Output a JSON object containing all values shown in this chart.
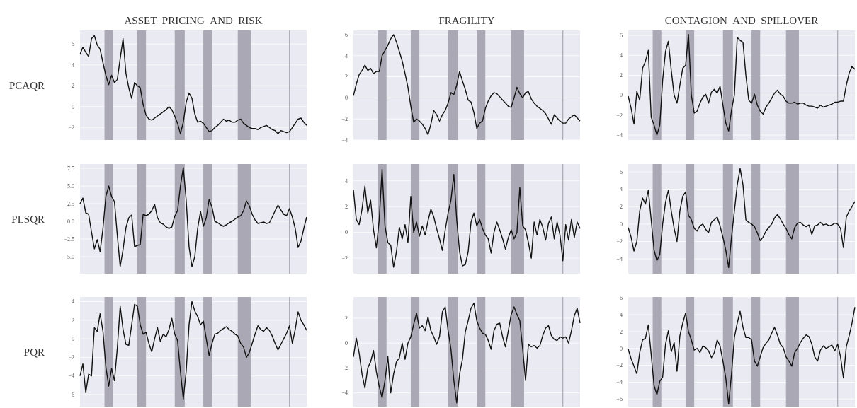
{
  "chart_data": [
    {
      "type": "line",
      "title": "ASSET_PRICING_AND_RISK",
      "ylabel": "PCAQR",
      "tick_labels": "y",
      "grid": "y",
      "ylim": [
        -3.2,
        7.3
      ],
      "yticks": [
        -2,
        0,
        2,
        4,
        6
      ],
      "categories": [
        null,
        null,
        null,
        null,
        null,
        null,
        null,
        null,
        null,
        null,
        null,
        null,
        null,
        null,
        null,
        null,
        null,
        null,
        null,
        null,
        null,
        null,
        null,
        null,
        null,
        null,
        null,
        null,
        null,
        null,
        null,
        null,
        null,
        null,
        null,
        null,
        null,
        null,
        null,
        null,
        null,
        null,
        null,
        null,
        null,
        null,
        null,
        null,
        null,
        null,
        null,
        null,
        null,
        null,
        null,
        null,
        null,
        null,
        null,
        null,
        null,
        null,
        null,
        null,
        null,
        null,
        null,
        null,
        null,
        null,
        null,
        null,
        null,
        null,
        null,
        null,
        null,
        null,
        null,
        null
      ],
      "series": [
        {
          "color": "#111111",
          "values": [
            5.0,
            5.7,
            5.2,
            4.8,
            6.5,
            6.8,
            5.9,
            5.5,
            4.2,
            3.0,
            2.1,
            3.0,
            2.3,
            2.6,
            4.6,
            6.5,
            3.2,
            1.8,
            0.8,
            2.3,
            2.0,
            1.8,
            0.2,
            -0.8,
            -1.2,
            -1.3,
            -1.1,
            -0.9,
            -0.7,
            -0.5,
            -0.3,
            0.0,
            -0.3,
            -0.9,
            -1.6,
            -2.6,
            -1.5,
            0.4,
            1.3,
            0.8,
            -0.7,
            -1.5,
            -1.4,
            -1.6,
            -2.0,
            -2.4,
            -2.3,
            -2.0,
            -1.8,
            -1.5,
            -1.2,
            -1.4,
            -1.3,
            -1.5,
            -1.5,
            -1.3,
            -1.2,
            -1.6,
            -1.8,
            -2.0,
            -2.1,
            -2.1,
            -2.2,
            -2.0,
            -1.9,
            -1.8,
            -2.0,
            -2.2,
            -2.3,
            -2.6,
            -2.3,
            -2.4,
            -2.5,
            -2.4,
            -2.0,
            -1.6,
            -1.2,
            -1.1,
            -1.5,
            -1.8
          ]
        }
      ]
    },
    {
      "type": "line",
      "title": "FRAGILITY",
      "tick_labels": "y",
      "grid": "y",
      "ylim": [
        -4,
        6.4
      ],
      "yticks": [
        -4,
        -2,
        0,
        2,
        4,
        6
      ],
      "categories": [
        null,
        null,
        null,
        null,
        null,
        null,
        null,
        null,
        null,
        null,
        null,
        null,
        null,
        null,
        null,
        null,
        null,
        null,
        null,
        null,
        null,
        null,
        null,
        null,
        null,
        null,
        null,
        null,
        null,
        null,
        null,
        null,
        null,
        null,
        null,
        null,
        null,
        null,
        null,
        null,
        null,
        null,
        null,
        null,
        null,
        null,
        null,
        null,
        null,
        null,
        null,
        null,
        null,
        null,
        null,
        null,
        null,
        null,
        null,
        null,
        null,
        null,
        null,
        null,
        null,
        null,
        null,
        null,
        null,
        null,
        null,
        null,
        null,
        null,
        null,
        null,
        null,
        null,
        null,
        null
      ],
      "series": [
        {
          "color": "#111111",
          "values": [
            0.2,
            1.3,
            2.2,
            2.6,
            3.1,
            2.6,
            2.8,
            2.3,
            2.5,
            2.5,
            4.0,
            4.5,
            5.0,
            5.6,
            6.0,
            5.3,
            4.4,
            3.5,
            2.3,
            1.0,
            -0.8,
            -2.3,
            -2.0,
            -2.2,
            -2.5,
            -2.9,
            -3.5,
            -2.5,
            -1.2,
            -1.6,
            -2.2,
            -1.6,
            -1.2,
            -0.5,
            0.5,
            0.3,
            1.2,
            2.5,
            1.6,
            0.8,
            -0.2,
            -0.4,
            -1.4,
            -2.9,
            -2.4,
            -2.2,
            -1.0,
            -0.3,
            0.2,
            0.5,
            0.4,
            0.1,
            -0.2,
            -0.5,
            -0.8,
            -0.9,
            0.0,
            1.0,
            0.4,
            0.0,
            0.5,
            0.6,
            -0.1,
            -0.5,
            -0.8,
            -1.0,
            -1.2,
            -1.5,
            -2.0,
            -2.5,
            -1.6,
            -1.9,
            -2.2,
            -2.4,
            -2.4,
            -2.0,
            -1.8,
            -1.6,
            -1.9,
            -2.2
          ]
        }
      ]
    },
    {
      "type": "line",
      "title": "CONTAGION_AND_SPILLOVER",
      "tick_labels": "y",
      "grid": "y",
      "ylim": [
        -4.5,
        6.5
      ],
      "yticks": [
        -4,
        -2,
        0,
        2,
        4,
        6
      ],
      "categories": [
        null,
        null,
        null,
        null,
        null,
        null,
        null,
        null,
        null,
        null,
        null,
        null,
        null,
        null,
        null,
        null,
        null,
        null,
        null,
        null,
        null,
        null,
        null,
        null,
        null,
        null,
        null,
        null,
        null,
        null,
        null,
        null,
        null,
        null,
        null,
        null,
        null,
        null,
        null,
        null,
        null,
        null,
        null,
        null,
        null,
        null,
        null,
        null,
        null,
        null,
        null,
        null,
        null,
        null,
        null,
        null,
        null,
        null,
        null,
        null,
        null,
        null,
        null,
        null,
        null,
        null,
        null,
        null,
        null,
        null,
        null,
        null,
        null,
        null,
        null,
        null,
        null,
        null,
        null,
        null
      ],
      "series": [
        {
          "color": "#111111",
          "values": [
            -0.1,
            -1.3,
            -2.9,
            0.4,
            -0.5,
            2.7,
            3.4,
            4.5,
            -2.2,
            -3.0,
            -4.0,
            -3.0,
            1.5,
            4.4,
            5.4,
            2.5,
            0.0,
            -0.8,
            1.0,
            2.7,
            3.0,
            6.1,
            0.0,
            -1.8,
            -1.6,
            -0.8,
            -0.2,
            0.1,
            -0.8,
            0.3,
            0.6,
            0.2,
            0.9,
            -1.0,
            -2.8,
            -3.6,
            -1.5,
            0.0,
            5.8,
            5.5,
            5.3,
            2.0,
            -0.5,
            -0.8,
            0.1,
            -1.0,
            -1.6,
            -1.9,
            -1.2,
            -0.8,
            -0.3,
            0.2,
            0.5,
            0.1,
            -0.1,
            -0.6,
            -0.8,
            -0.8,
            -0.7,
            -0.9,
            -0.8,
            -0.8,
            -1.0,
            -1.1,
            -1.1,
            -1.2,
            -1.3,
            -1.0,
            -1.2,
            -1.1,
            -1.0,
            -0.9,
            -0.7,
            -0.7,
            -0.6,
            -0.6,
            1.0,
            2.2,
            2.9,
            2.6
          ]
        }
      ]
    },
    {
      "type": "line",
      "ylabel": "PLSQR",
      "tick_labels": "y",
      "grid": "y",
      "ylim": [
        -7.4,
        8.1
      ],
      "yticks": [
        {
          "value": -5,
          "label": "−5.0"
        },
        {
          "value": -2.5,
          "label": "−2.5"
        },
        {
          "value": 0,
          "label": "0.0"
        },
        {
          "value": 2.5,
          "label": "2.5"
        },
        {
          "value": 5,
          "label": "5.0"
        },
        {
          "value": 7.5,
          "label": "7.5"
        }
      ],
      "categories": [
        null,
        null,
        null,
        null,
        null,
        null,
        null,
        null,
        null,
        null,
        null,
        null,
        null,
        null,
        null,
        null,
        null,
        null,
        null,
        null,
        null,
        null,
        null,
        null,
        null,
        null,
        null,
        null,
        null,
        null,
        null,
        null,
        null,
        null,
        null,
        null,
        null,
        null,
        null,
        null,
        null,
        null,
        null,
        null,
        null,
        null,
        null,
        null,
        null,
        null,
        null,
        null,
        null,
        null,
        null,
        null,
        null,
        null,
        null,
        null,
        null,
        null,
        null,
        null,
        null,
        null,
        null,
        null,
        null,
        null,
        null,
        null,
        null,
        null,
        null,
        null,
        null,
        null,
        null,
        null
      ],
      "series": [
        {
          "color": "#111111",
          "values": [
            2.5,
            3.3,
            1.2,
            1.0,
            -1.5,
            -3.9,
            -2.6,
            -4.3,
            -1.0,
            3.5,
            5.0,
            3.5,
            2.8,
            -2.0,
            -6.4,
            -4.0,
            -0.9,
            0.5,
            0.9,
            -3.6,
            -3.4,
            -3.3,
            1.0,
            0.8,
            1.0,
            1.5,
            2.4,
            0.5,
            -0.2,
            -0.4,
            -0.8,
            -1.0,
            -0.8,
            0.7,
            1.5,
            5.0,
            7.6,
            3.0,
            -3.6,
            -6.4,
            -5.0,
            -1.0,
            1.4,
            -0.7,
            0.5,
            3.1,
            2.0,
            0.0,
            -0.2,
            -0.5,
            -0.7,
            -0.5,
            -0.2,
            0.0,
            0.3,
            0.6,
            0.8,
            1.5,
            2.9,
            2.2,
            1.0,
            0.2,
            -0.3,
            -0.2,
            -0.1,
            -0.3,
            -0.2,
            0.6,
            1.5,
            2.3,
            1.6,
            1.0,
            0.8,
            1.8,
            0.6,
            -1.0,
            -3.7,
            -2.8,
            -1.0,
            0.6
          ]
        }
      ]
    },
    {
      "type": "line",
      "tick_labels": "y",
      "grid": "y",
      "ylim": [
        -3.2,
        5.3
      ],
      "yticks": [
        -2,
        0,
        2,
        4
      ],
      "categories": [
        null,
        null,
        null,
        null,
        null,
        null,
        null,
        null,
        null,
        null,
        null,
        null,
        null,
        null,
        null,
        null,
        null,
        null,
        null,
        null,
        null,
        null,
        null,
        null,
        null,
        null,
        null,
        null,
        null,
        null,
        null,
        null,
        null,
        null,
        null,
        null,
        null,
        null,
        null,
        null,
        null,
        null,
        null,
        null,
        null,
        null,
        null,
        null,
        null,
        null,
        null,
        null,
        null,
        null,
        null,
        null,
        null,
        null,
        null,
        null,
        null,
        null,
        null,
        null,
        null,
        null,
        null,
        null,
        null,
        null,
        null,
        null,
        null,
        null,
        null,
        null,
        null,
        null,
        null,
        null
      ],
      "series": [
        {
          "color": "#111111",
          "values": [
            3.3,
            1.0,
            0.6,
            1.8,
            3.6,
            1.5,
            2.5,
            0.2,
            -1.2,
            1.0,
            4.9,
            0.5,
            -0.8,
            -1.0,
            -2.7,
            -1.5,
            0.4,
            -0.5,
            0.6,
            -0.8,
            2.8,
            0.0,
            0.8,
            -0.3,
            0.5,
            -0.2,
            0.9,
            1.8,
            1.2,
            0.3,
            -0.5,
            -1.4,
            0.2,
            1.5,
            2.5,
            4.5,
            1.0,
            -1.5,
            -2.6,
            -2.5,
            -1.5,
            0.8,
            1.5,
            0.5,
            1.0,
            0.3,
            -0.2,
            -0.5,
            -1.6,
            0.0,
            0.8,
            0.2,
            -0.5,
            -1.3,
            -0.4,
            0.2,
            -0.5,
            0.0,
            3.5,
            0.5,
            0.2,
            -0.8,
            -2.0,
            0.8,
            -0.2,
            1.0,
            0.4,
            -0.6,
            0.7,
            1.2,
            -0.5,
            0.8,
            -0.2,
            -2.2,
            0.6,
            -0.6,
            1.0,
            -0.4,
            0.8,
            0.3
          ]
        }
      ]
    },
    {
      "type": "line",
      "tick_labels": "y",
      "grid": "y",
      "ylim": [
        -5.7,
        6.9
      ],
      "yticks": [
        -4,
        -2,
        0,
        2,
        4,
        6
      ],
      "categories": [
        null,
        null,
        null,
        null,
        null,
        null,
        null,
        null,
        null,
        null,
        null,
        null,
        null,
        null,
        null,
        null,
        null,
        null,
        null,
        null,
        null,
        null,
        null,
        null,
        null,
        null,
        null,
        null,
        null,
        null,
        null,
        null,
        null,
        null,
        null,
        null,
        null,
        null,
        null,
        null,
        null,
        null,
        null,
        null,
        null,
        null,
        null,
        null,
        null,
        null,
        null,
        null,
        null,
        null,
        null,
        null,
        null,
        null,
        null,
        null,
        null,
        null,
        null,
        null,
        null,
        null,
        null,
        null,
        null,
        null,
        null,
        null,
        null,
        null,
        null,
        null,
        null,
        null,
        null,
        null
      ],
      "series": [
        {
          "color": "#111111",
          "values": [
            -0.4,
            -1.5,
            -3.1,
            -2.0,
            1.5,
            3.0,
            2.3,
            3.9,
            0.5,
            -3.0,
            -4.2,
            -3.5,
            0.0,
            2.5,
            3.9,
            1.5,
            -0.5,
            -2.0,
            1.5,
            3.2,
            3.7,
            1.0,
            0.5,
            -0.5,
            -0.8,
            -0.2,
            0.0,
            -0.6,
            -1.0,
            0.2,
            0.5,
            0.8,
            -0.2,
            -1.5,
            -3.0,
            -5.0,
            -1.5,
            1.5,
            4.5,
            6.4,
            4.5,
            0.5,
            0.2,
            0.0,
            -0.3,
            -1.0,
            -1.9,
            -1.5,
            -0.8,
            -0.4,
            0.0,
            0.7,
            1.1,
            0.6,
            0.0,
            -0.5,
            -1.2,
            -1.7,
            -0.4,
            0.1,
            0.2,
            -0.1,
            -0.3,
            -0.1,
            -1.2,
            -0.2,
            -0.1,
            0.2,
            -0.1,
            0.0,
            -0.2,
            -0.1,
            0.1,
            0.0,
            -0.5,
            -2.7,
            0.8,
            1.5,
            2.0,
            2.6
          ]
        }
      ]
    },
    {
      "type": "line",
      "ylabel": "PQR",
      "tick_labels": "y",
      "grid": "y",
      "ylim": [
        -7.3,
        4.5
      ],
      "yticks": [
        -6,
        -4,
        -2,
        0,
        2,
        4
      ],
      "categories": [
        null,
        null,
        null,
        null,
        null,
        null,
        null,
        null,
        null,
        null,
        null,
        null,
        null,
        null,
        null,
        null,
        null,
        null,
        null,
        null,
        null,
        null,
        null,
        null,
        null,
        null,
        null,
        null,
        null,
        null,
        null,
        null,
        null,
        null,
        null,
        null,
        null,
        null,
        null,
        null,
        null,
        null,
        null,
        null,
        null,
        null,
        null,
        null,
        null,
        null,
        null,
        null,
        null,
        null,
        null,
        null,
        null,
        null,
        null,
        null,
        null,
        null,
        null,
        null,
        null,
        null,
        null,
        null,
        null,
        null,
        null,
        null,
        null,
        null,
        null,
        null,
        null,
        null,
        null,
        null
      ],
      "series": [
        {
          "color": "#111111",
          "values": [
            -4.0,
            -2.7,
            -5.8,
            -3.8,
            -4.0,
            1.2,
            0.8,
            2.7,
            0.8,
            -3.0,
            -5.1,
            -3.2,
            -4.5,
            -1.0,
            3.5,
            1.0,
            -0.6,
            -0.7,
            1.5,
            3.7,
            3.5,
            1.5,
            0.5,
            0.7,
            -0.5,
            -1.4,
            0.0,
            1.2,
            -0.3,
            0.5,
            0.2,
            1.0,
            2.2,
            0.5,
            -0.2,
            -3.5,
            -6.5,
            -3.5,
            1.5,
            4.0,
            3.0,
            2.4,
            1.5,
            1.9,
            0.0,
            -1.8,
            -0.5,
            0.5,
            0.6,
            0.9,
            1.1,
            1.3,
            1.0,
            0.8,
            0.5,
            0.3,
            -0.5,
            -0.9,
            -2.0,
            -1.5,
            -0.5,
            0.5,
            1.4,
            1.0,
            0.8,
            1.2,
            0.9,
            0.3,
            -0.5,
            -1.2,
            -0.6,
            0.0,
            0.6,
            1.4,
            -0.5,
            1.0,
            2.9,
            2.0,
            1.5,
            0.9
          ]
        }
      ]
    },
    {
      "type": "line",
      "tick_labels": "y",
      "grid": "y",
      "ylim": [
        -5.1,
        3.7
      ],
      "yticks": [
        -4,
        -2,
        0,
        2
      ],
      "categories": [
        null,
        null,
        null,
        null,
        null,
        null,
        null,
        null,
        null,
        null,
        null,
        null,
        null,
        null,
        null,
        null,
        null,
        null,
        null,
        null,
        null,
        null,
        null,
        null,
        null,
        null,
        null,
        null,
        null,
        null,
        null,
        null,
        null,
        null,
        null,
        null,
        null,
        null,
        null,
        null,
        null,
        null,
        null,
        null,
        null,
        null,
        null,
        null,
        null,
        null,
        null,
        null,
        null,
        null,
        null,
        null,
        null,
        null,
        null,
        null,
        null,
        null,
        null,
        null,
        null,
        null,
        null,
        null,
        null,
        null,
        null,
        null,
        null,
        null,
        null,
        null,
        null,
        null,
        null,
        null
      ],
      "series": [
        {
          "color": "#111111",
          "values": [
            -1.1,
            0.4,
            -0.8,
            -2.5,
            -3.6,
            -2.0,
            -1.5,
            -0.6,
            -2.3,
            -3.5,
            -4.4,
            -3.0,
            -1.1,
            -4.0,
            -2.5,
            -1.5,
            -1.2,
            0.0,
            -1.3,
            0.0,
            0.5,
            1.5,
            2.4,
            1.2,
            1.4,
            1.0,
            2.1,
            1.0,
            0.5,
            -0.1,
            0.5,
            2.5,
            2.9,
            1.0,
            -0.5,
            -3.0,
            -4.8,
            -2.5,
            -1.3,
            0.9,
            1.8,
            2.8,
            3.2,
            1.8,
            1.2,
            0.8,
            0.7,
            0.2,
            -0.5,
            1.0,
            1.5,
            1.6,
            0.5,
            -0.3,
            1.0,
            2.3,
            2.9,
            2.3,
            1.8,
            -0.5,
            -3.0,
            -0.1,
            -0.3,
            -0.2,
            -0.4,
            -0.2,
            0.6,
            1.2,
            1.4,
            0.6,
            0.3,
            0.2,
            0.5,
            0.4,
            0.5,
            0.0,
            1.0,
            2.2,
            2.8,
            1.6
          ]
        }
      ]
    },
    {
      "type": "line",
      "tick_labels": "y",
      "grid": "y",
      "ylim": [
        -6.9,
        6.1
      ],
      "yticks": [
        -6,
        -4,
        -2,
        0,
        2,
        4,
        6
      ],
      "categories": [
        null,
        null,
        null,
        null,
        null,
        null,
        null,
        null,
        null,
        null,
        null,
        null,
        null,
        null,
        null,
        null,
        null,
        null,
        null,
        null,
        null,
        null,
        null,
        null,
        null,
        null,
        null,
        null,
        null,
        null,
        null,
        null,
        null,
        null,
        null,
        null,
        null,
        null,
        null,
        null,
        null,
        null,
        null,
        null,
        null,
        null,
        null,
        null,
        null,
        null,
        null,
        null,
        null,
        null,
        null,
        null,
        null,
        null,
        null,
        null,
        null,
        null,
        null,
        null,
        null,
        null,
        null,
        null,
        null,
        null,
        null,
        null,
        null,
        null,
        null,
        null,
        null,
        null,
        null,
        null
      ],
      "series": [
        {
          "color": "#111111",
          "values": [
            -0.1,
            -1.2,
            -2.1,
            -3.0,
            -0.5,
            1.0,
            1.2,
            2.8,
            -0.7,
            -4.4,
            -5.5,
            -3.9,
            -3.4,
            0.5,
            2.1,
            -0.4,
            0.7,
            -2.7,
            1.5,
            3.0,
            4.2,
            2.0,
            1.0,
            -0.2,
            0.0,
            -0.5,
            0.3,
            0.1,
            -0.3,
            -1.1,
            -0.5,
            1.0,
            0.3,
            -1.5,
            -3.5,
            -6.6,
            -3.0,
            1.3,
            3.0,
            4.4,
            2.5,
            1.3,
            1.3,
            1.0,
            -1.5,
            -2.1,
            -1.0,
            0.1,
            0.6,
            1.0,
            1.8,
            2.5,
            1.6,
            0.5,
            0.1,
            -1.0,
            -1.5,
            -2.1,
            -0.5,
            0.0,
            0.7,
            1.2,
            1.6,
            1.4,
            0.5,
            -1.0,
            -1.5,
            -0.2,
            0.3,
            0.0,
            0.2,
            0.4,
            -0.3,
            0.5,
            -1.0,
            -3.5,
            0.2,
            1.5,
            3.0,
            4.9
          ]
        }
      ]
    }
  ]
}
